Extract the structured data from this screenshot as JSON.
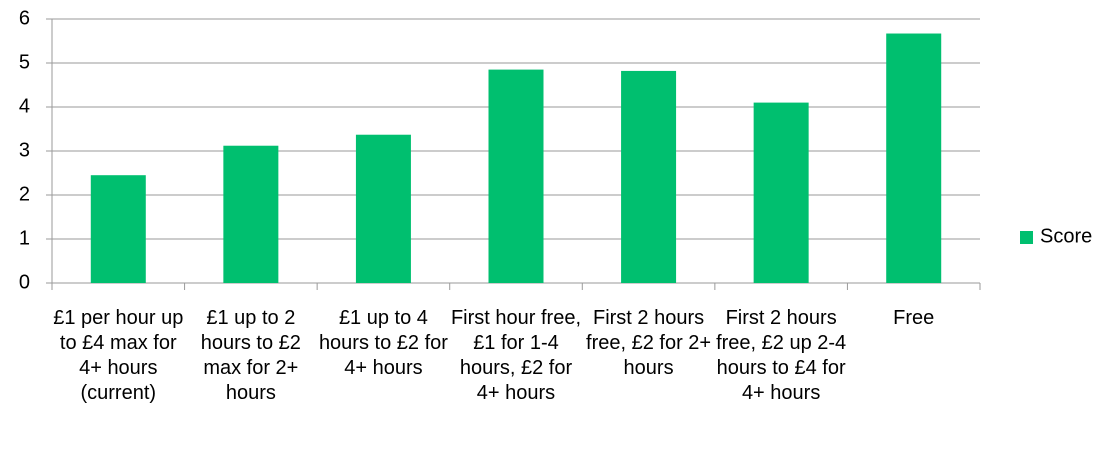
{
  "chart_data": {
    "type": "bar",
    "categories": [
      "£1 per hour up to £4 max for 4+ hours (current)",
      "£1 up to 2 hours to £2 max for 2+ hours",
      "£1 up to 4 hours to £2 for 4+ hours",
      "First hour free, £1 for 1-4 hours, £2 for 4+ hours",
      "First 2 hours free, £2 for 2+ hours",
      "First 2 hours free, £2 up 2-4 hours to £4 for 4+ hours",
      "Free"
    ],
    "series": [
      {
        "name": "Score",
        "color": "#00bf6f",
        "values": [
          2.45,
          3.12,
          3.37,
          4.85,
          4.82,
          4.1,
          5.67
        ]
      }
    ],
    "ylim": [
      0,
      6
    ],
    "yticks": [
      0,
      1,
      2,
      3,
      4,
      5,
      6
    ],
    "grid": true,
    "legend": "right"
  }
}
